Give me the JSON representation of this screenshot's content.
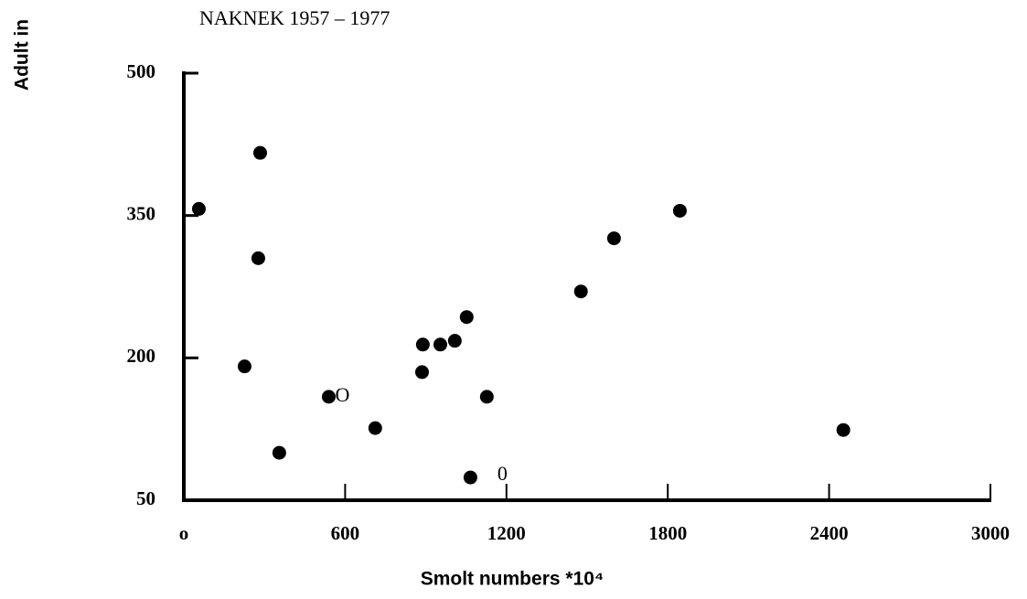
{
  "chart_data": {
    "type": "scatter",
    "title": "NAKNEK 1957 – 1977",
    "xlabel": "Smolt numbers *10⁴",
    "ylabel": "Adult in",
    "x": [
      56,
      284,
      277,
      226,
      355,
      539,
      712,
      889,
      954,
      1008,
      1052,
      886,
      1127,
      1066,
      1477,
      1600,
      1845,
      2453
    ],
    "values": [
      357,
      416,
      305,
      191,
      100,
      159,
      126,
      214,
      214,
      218,
      243,
      185,
      159,
      74,
      270,
      326,
      355,
      124
    ],
    "color": "#000000",
    "xlim": [
      0,
      3000
    ],
    "xticks": [
      {
        "value": 0,
        "label": "o"
      },
      600,
      1200,
      1800,
      2400,
      3000
    ],
    "ylim": [
      50,
      500
    ],
    "yticks": [
      50,
      200,
      350,
      500
    ],
    "annotations": [
      {
        "text": "O",
        "x": 590,
        "y": 159
      },
      {
        "text": "0",
        "x": 1185,
        "y": 76
      }
    ]
  }
}
